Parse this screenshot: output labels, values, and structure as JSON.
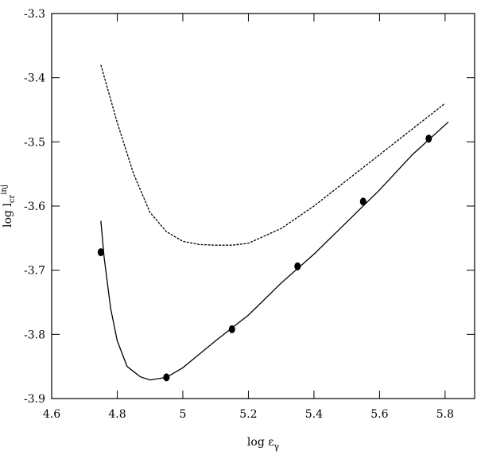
{
  "chart_data": {
    "type": "line",
    "xlabel": {
      "text": "log ε",
      "sub": "γ"
    },
    "ylabel": {
      "text": "log l",
      "sub": "cr",
      "sup": "inj"
    },
    "xlim": [
      4.6,
      5.89
    ],
    "ylim": [
      -3.9,
      -3.3
    ],
    "xticks": [
      4.6,
      4.8,
      5,
      5.2,
      5.4,
      5.6,
      5.8
    ],
    "yticks": [
      -3.9,
      -3.8,
      -3.7,
      -3.6,
      -3.5,
      -3.4,
      -3.3
    ],
    "series": [
      {
        "mode": "line",
        "dash": "dashed",
        "color": "#000000",
        "x": [
          4.75,
          4.8,
          4.85,
          4.9,
          4.95,
          5.0,
          5.05,
          5.1,
          5.15,
          5.2,
          5.3,
          5.4,
          5.5,
          5.6,
          5.7,
          5.8
        ],
        "values": [
          -3.38,
          -3.47,
          -3.55,
          -3.61,
          -3.64,
          -3.655,
          -3.66,
          -3.661,
          -3.661,
          -3.658,
          -3.635,
          -3.6,
          -3.56,
          -3.52,
          -3.48,
          -3.44
        ]
      },
      {
        "mode": "line",
        "dash": "solid",
        "color": "#000000",
        "x": [
          4.75,
          4.76,
          4.78,
          4.8,
          4.83,
          4.87,
          4.9,
          4.95,
          5.0,
          5.1,
          5.2,
          5.3,
          5.4,
          5.5,
          5.6,
          5.7,
          5.81
        ],
        "values": [
          -3.623,
          -3.68,
          -3.76,
          -3.81,
          -3.85,
          -3.866,
          -3.871,
          -3.867,
          -3.852,
          -3.81,
          -3.77,
          -3.72,
          -3.675,
          -3.625,
          -3.575,
          -3.52,
          -3.469
        ]
      },
      {
        "mode": "scatter",
        "color": "#000000",
        "x": [
          4.75,
          4.95,
          5.15,
          5.35,
          5.55,
          5.75
        ],
        "values": [
          -3.672,
          -3.867,
          -3.792,
          -3.694,
          -3.593,
          -3.495
        ]
      }
    ]
  }
}
